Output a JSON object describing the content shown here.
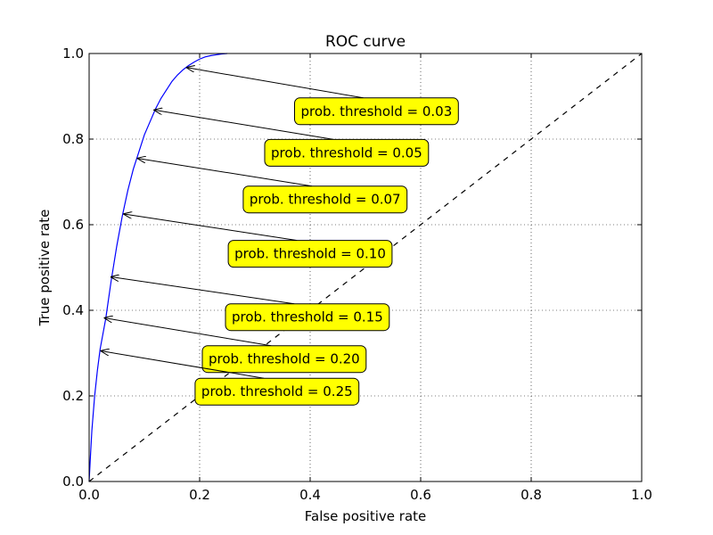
{
  "chart_data": {
    "type": "line",
    "title": "ROC curve",
    "xlabel": "False positive rate",
    "ylabel": "True positive rate",
    "xlim": [
      0.0,
      1.0
    ],
    "ylim": [
      0.0,
      1.0
    ],
    "grid": true,
    "x_ticks": [
      "0.0",
      "0.2",
      "0.4",
      "0.6",
      "0.8",
      "1.0"
    ],
    "y_ticks": [
      "0.0",
      "0.2",
      "0.4",
      "0.6",
      "0.8",
      "1.0"
    ],
    "series": [
      {
        "color": "#0000ff",
        "style": "solid",
        "x": [
          0.0,
          0.002,
          0.005,
          0.01,
          0.015,
          0.02,
          0.03,
          0.04,
          0.05,
          0.06,
          0.07,
          0.08,
          0.09,
          0.1,
          0.11,
          0.12,
          0.13,
          0.14,
          0.15,
          0.16,
          0.17,
          0.18,
          0.19,
          0.2,
          0.21,
          0.22,
          0.23,
          0.24,
          0.25
        ],
        "y": [
          0.0,
          0.05,
          0.12,
          0.2,
          0.26,
          0.31,
          0.38,
          0.47,
          0.55,
          0.62,
          0.68,
          0.73,
          0.77,
          0.81,
          0.84,
          0.87,
          0.895,
          0.915,
          0.935,
          0.95,
          0.962,
          0.972,
          0.98,
          0.987,
          0.992,
          0.995,
          0.997,
          0.999,
          1.0
        ]
      },
      {
        "color": "#000000",
        "style": "dashed",
        "x": [
          0.0,
          1.0
        ],
        "y": [
          0.0,
          1.0
        ]
      }
    ],
    "annotations": [
      {
        "text": "prob. threshold = 0.03",
        "point": [
          0.177,
          0.967
        ],
        "label_pos": [
          0.52,
          0.865
        ]
      },
      {
        "text": "prob. threshold = 0.05",
        "point": [
          0.118,
          0.868
        ],
        "label_pos": [
          0.466,
          0.768
        ]
      },
      {
        "text": "prob. threshold = 0.07",
        "point": [
          0.088,
          0.755
        ],
        "label_pos": [
          0.427,
          0.659
        ]
      },
      {
        "text": "prob. threshold = 0.10",
        "point": [
          0.063,
          0.625
        ],
        "label_pos": [
          0.4,
          0.532
        ]
      },
      {
        "text": "prob. threshold = 0.15",
        "point": [
          0.04,
          0.478
        ],
        "label_pos": [
          0.395,
          0.384
        ]
      },
      {
        "text": "prob. threshold = 0.20",
        "point": [
          0.028,
          0.382
        ],
        "label_pos": [
          0.353,
          0.286
        ]
      },
      {
        "text": "prob. threshold = 0.25",
        "point": [
          0.022,
          0.305
        ],
        "label_pos": [
          0.34,
          0.21
        ]
      }
    ],
    "annotation_box_color": "#ffff00"
  }
}
